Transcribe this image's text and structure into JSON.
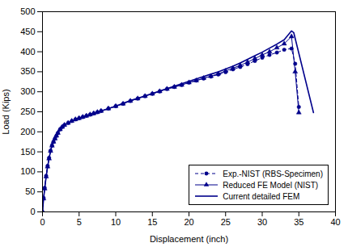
{
  "chart_data": {
    "type": "line",
    "xlabel": "Displacement (inch)",
    "ylabel": "Load (Kips)",
    "xlim": [
      0,
      40
    ],
    "ylim": [
      0,
      500
    ],
    "xticks": [
      0,
      5,
      10,
      15,
      20,
      25,
      30,
      35,
      40
    ],
    "yticks": [
      0,
      50,
      100,
      150,
      200,
      250,
      300,
      350,
      400,
      450,
      500
    ],
    "grid": false,
    "legend": "lower right",
    "series": [
      {
        "name": "Exp.-NIST (RBS-Specimen)",
        "color": "#00008B",
        "marker": "circle",
        "line_style": "dashed",
        "x": [
          0,
          0.15,
          0.3,
          0.5,
          0.7,
          0.9,
          1.1,
          1.3,
          1.5,
          1.7,
          1.9,
          2.1,
          2.4,
          2.7,
          3.0,
          3.5,
          4.0,
          4.5,
          5.0,
          5.5,
          6.0,
          6.5,
          7.0,
          7.5,
          8.0,
          9.0,
          10.0,
          11.0,
          12.0,
          13.0,
          14.0,
          15.0,
          16.0,
          17.0,
          18.0,
          19.0,
          20.0,
          21.0,
          22.0,
          23.0,
          24.0,
          25.0,
          26.0,
          27.0,
          28.0,
          29.0,
          30.0,
          31.0,
          32.0,
          33.0,
          34.0,
          34.5,
          35.0
        ],
        "values": [
          0,
          35,
          60,
          90,
          115,
          135,
          153,
          166,
          175,
          183,
          190,
          197,
          206,
          212,
          217,
          222,
          227,
          231,
          234,
          237,
          240,
          243,
          246,
          249,
          252,
          258,
          264,
          270,
          277,
          283,
          289,
          295,
          301,
          307,
          312,
          317,
          323,
          328,
          333,
          338,
          343,
          349,
          356,
          362,
          369,
          377,
          385,
          392,
          398,
          405,
          408,
          370,
          262
        ]
      },
      {
        "name": "Reduced FE Model (NIST)",
        "color": "#00008B",
        "marker": "triangle",
        "line_style": "solid",
        "x": [
          0,
          0.15,
          0.3,
          0.5,
          0.7,
          0.9,
          1.1,
          1.3,
          1.5,
          1.7,
          1.9,
          2.1,
          2.4,
          2.7,
          3.0,
          3.5,
          4.0,
          4.5,
          5.0,
          5.5,
          6.0,
          6.5,
          7.0,
          7.5,
          8.0,
          9.0,
          10.0,
          11.0,
          12.0,
          13.0,
          14.0,
          15.0,
          16.0,
          17.0,
          18.0,
          19.0,
          20.0,
          21.0,
          22.0,
          23.0,
          24.0,
          25.0,
          26.0,
          27.0,
          28.0,
          29.0,
          30.0,
          31.0,
          32.0,
          33.0,
          34.0,
          34.5,
          35.0
        ],
        "values": [
          0,
          33,
          58,
          88,
          113,
          133,
          152,
          165,
          175,
          183,
          190,
          197,
          206,
          212,
          217,
          222,
          227,
          231,
          234,
          237,
          240,
          243,
          246,
          249,
          252,
          258,
          264,
          270,
          277,
          283,
          289,
          295,
          301,
          307,
          312,
          317,
          323,
          328,
          334,
          339,
          345,
          352,
          359,
          366,
          374,
          383,
          392,
          400,
          410,
          420,
          438,
          350,
          248
        ]
      },
      {
        "name": "Current detailed FEM",
        "color": "#00008B",
        "line_style": "solid",
        "x": [
          0,
          0.15,
          0.3,
          0.5,
          0.7,
          0.9,
          1.1,
          1.3,
          1.5,
          1.7,
          1.9,
          2.1,
          2.4,
          2.7,
          3.0,
          3.5,
          4.0,
          4.5,
          5.0,
          5.5,
          6.0,
          6.5,
          7.0,
          7.5,
          8.0,
          9.0,
          10.0,
          11.0,
          12.0,
          13.0,
          14.0,
          15.0,
          16.0,
          17.0,
          18.0,
          19.0,
          20.0,
          21.0,
          22.0,
          23.0,
          24.0,
          25.0,
          26.0,
          27.0,
          28.0,
          29.0,
          30.0,
          31.0,
          32.0,
          33.0,
          34.0,
          34.3,
          37.0
        ],
        "values": [
          0,
          33,
          58,
          88,
          113,
          133,
          152,
          165,
          175,
          183,
          190,
          197,
          206,
          212,
          217,
          222,
          227,
          231,
          234,
          237,
          240,
          243,
          246,
          249,
          252,
          258,
          264,
          271,
          278,
          284,
          290,
          296,
          302,
          308,
          314,
          320,
          326,
          332,
          338,
          344,
          350,
          357,
          364,
          372,
          381,
          390,
          399,
          409,
          419,
          430,
          452,
          448,
          248
        ]
      }
    ]
  }
}
